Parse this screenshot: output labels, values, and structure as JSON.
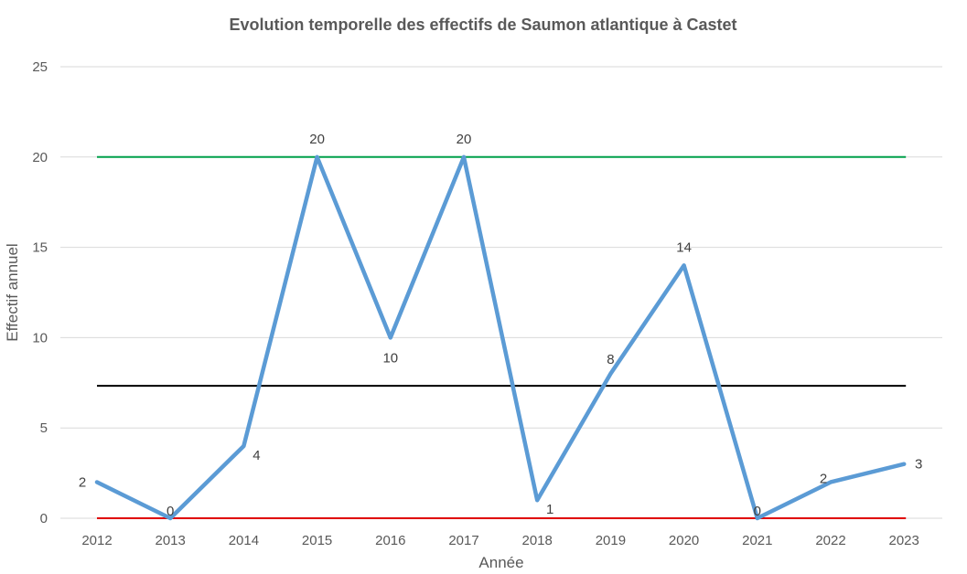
{
  "chart_data": {
    "type": "line",
    "title": "Evolution temporelle des effectifs de Saumon atlantique à Castet",
    "xlabel": "Année",
    "ylabel": "Effectif annuel",
    "categories": [
      "2012",
      "2013",
      "2014",
      "2015",
      "2016",
      "2017",
      "2018",
      "2019",
      "2020",
      "2021",
      "2022",
      "2023"
    ],
    "series": [
      {
        "values": [
          2,
          0,
          4,
          20,
          10,
          20,
          1,
          8,
          14,
          0,
          2,
          3
        ],
        "color": "#5B9BD5"
      }
    ],
    "reference_lines": [
      {
        "y": 20,
        "color": "#00A04A"
      },
      {
        "y": 7.33,
        "color": "#000000"
      },
      {
        "y": 0,
        "color": "#E00000"
      }
    ],
    "ylim": [
      0,
      25
    ],
    "yticks": [
      0,
      5,
      10,
      15,
      20,
      25
    ],
    "grid": true,
    "data_labels": true,
    "legend": "none"
  }
}
